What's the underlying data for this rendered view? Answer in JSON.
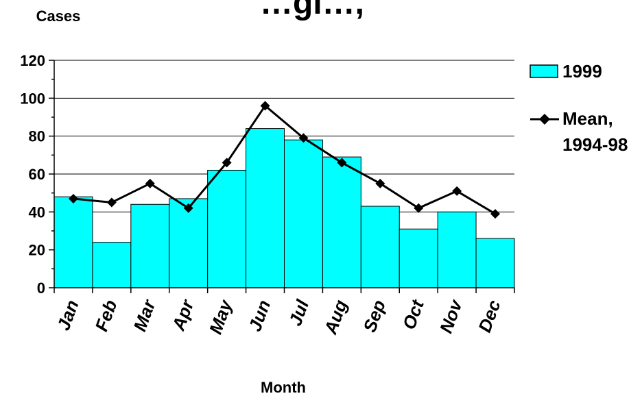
{
  "chart_data": {
    "type": "bar",
    "title": "…gi…,",
    "ylabel": "Cases",
    "xlabel": "Month",
    "categories": [
      "Jan",
      "Feb",
      "Mar",
      "Apr",
      "May",
      "Jun",
      "Jul",
      "Aug",
      "Sep",
      "Oct",
      "Nov",
      "Dec"
    ],
    "ylim": [
      0,
      120
    ],
    "yticks": [
      0,
      20,
      40,
      60,
      80,
      100,
      120
    ],
    "grid": true,
    "legend_position": "right",
    "series": [
      {
        "name": "1999",
        "kind": "bar",
        "color": "#00FFFF",
        "values": [
          48,
          24,
          44,
          47,
          62,
          84,
          78,
          69,
          43,
          31,
          40,
          26
        ]
      },
      {
        "name_lines": [
          "Mean,",
          "1994-98"
        ],
        "kind": "line",
        "color": "#000000",
        "values": [
          47,
          45,
          55,
          42,
          66,
          96,
          79,
          66,
          55,
          42,
          51,
          39
        ]
      }
    ]
  }
}
